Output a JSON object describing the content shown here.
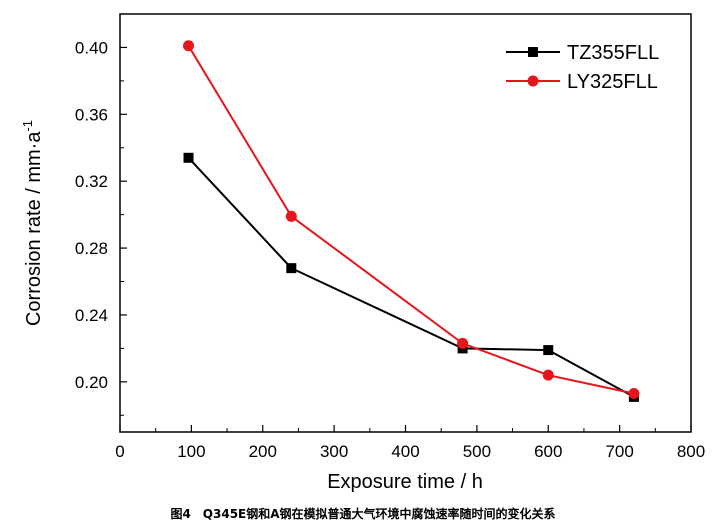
{
  "chart_data": {
    "type": "line",
    "xlabel": "Exposure time / h",
    "ylabel": "Corrosion rate / mm·a",
    "ylabel_superscript": "-1",
    "xlim": [
      0,
      800
    ],
    "ylim": [
      0.17,
      0.42
    ],
    "x_ticks": [
      0,
      100,
      200,
      300,
      400,
      500,
      600,
      700,
      800
    ],
    "y_ticks": [
      0.2,
      0.24,
      0.28,
      0.32,
      0.36,
      0.4
    ],
    "x_tick_labels": [
      "0",
      "100",
      "200",
      "300",
      "400",
      "500",
      "600",
      "700",
      "800"
    ],
    "y_tick_labels": [
      "0.20",
      "0.24",
      "0.28",
      "0.32",
      "0.36",
      "0.40"
    ],
    "grid": false,
    "legend_position": "top-right",
    "series": [
      {
        "name": "TZ355FLL",
        "color": "#000000",
        "marker": "square",
        "x": [
          96,
          240,
          480,
          600,
          720
        ],
        "values": [
          0.334,
          0.268,
          0.22,
          0.219,
          0.191
        ]
      },
      {
        "name": "LY325FLL",
        "color": "#e8141b",
        "marker": "circle",
        "x": [
          96,
          240,
          480,
          600,
          720
        ],
        "values": [
          0.401,
          0.299,
          0.223,
          0.204,
          0.193
        ]
      }
    ]
  },
  "caption": "图4　Q345E钢和A钢在模拟普通大气环境中腐蚀速率随时间的变化关系"
}
